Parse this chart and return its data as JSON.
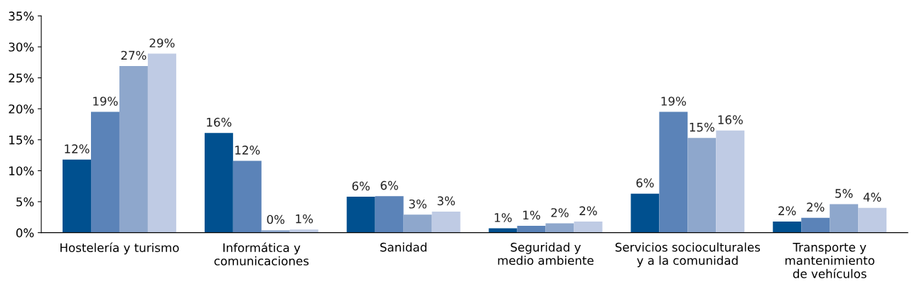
{
  "chart_data": {
    "type": "bar",
    "categories": [
      "Hostelería y turismo",
      "Informática y\ncomunicaciones",
      "Sanidad",
      "Seguridad y\nmedio ambiente",
      "Servicios socioculturales\ny a la comunidad",
      "Transporte y\nmantenimiento\nde vehículos"
    ],
    "series": [
      {
        "color": "#00508f",
        "values": [
          11.8,
          16.1,
          5.8,
          0.7,
          6.3,
          1.8
        ],
        "value_labels": [
          "12%",
          "16%",
          "6%",
          "1%",
          "6%",
          "2%"
        ]
      },
      {
        "color": "#5b83b8",
        "values": [
          19.5,
          11.6,
          5.9,
          1.1,
          19.5,
          2.4
        ],
        "value_labels": [
          "19%",
          "12%",
          "6%",
          "1%",
          "19%",
          "2%"
        ]
      },
      {
        "color": "#8ea7cc",
        "values": [
          26.9,
          0.4,
          2.9,
          1.5,
          15.3,
          4.6
        ],
        "value_labels": [
          "27%",
          "0%",
          "3%",
          "2%",
          "15%",
          "5%"
        ]
      },
      {
        "color": "#bfcbe4",
        "values": [
          28.9,
          0.5,
          3.4,
          1.8,
          16.5,
          4.0
        ],
        "value_labels": [
          "29%",
          "1%",
          "3%",
          "2%",
          "16%",
          "4%"
        ]
      }
    ],
    "ylim": [
      0,
      35
    ],
    "yticks": [
      {
        "value": 0,
        "label": "0%"
      },
      {
        "value": 5,
        "label": "5%"
      },
      {
        "value": 10,
        "label": "10%"
      },
      {
        "value": 15,
        "label": "15%"
      },
      {
        "value": 20,
        "label": "20%"
      },
      {
        "value": 25,
        "label": "25%"
      },
      {
        "value": 30,
        "label": "30%"
      },
      {
        "value": 35,
        "label": "35%"
      }
    ],
    "grid": false
  }
}
